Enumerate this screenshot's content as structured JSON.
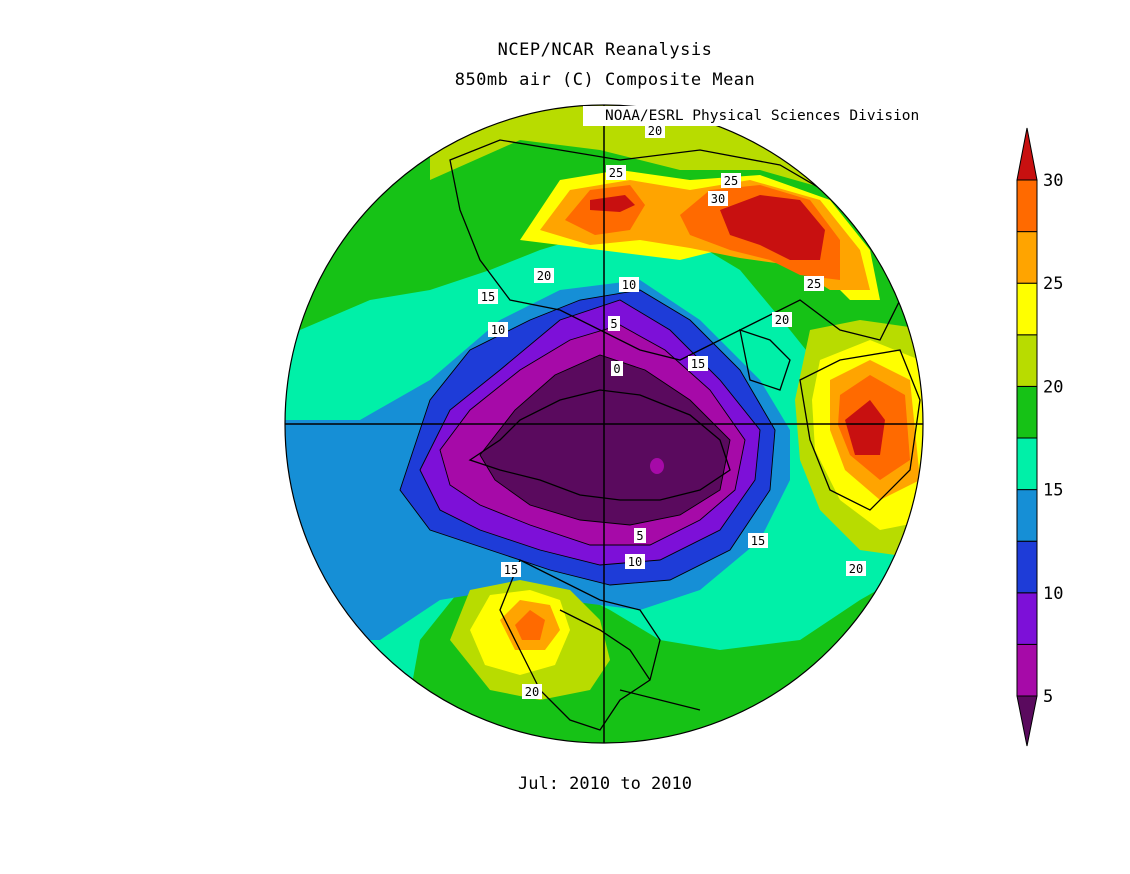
{
  "title_line1": "NCEP/NCAR Reanalysis",
  "title_line2": "850mb air (C) Composite Mean",
  "credit": "NOAA/ESRL Physical Sciences Division",
  "period": "Jul: 2010 to 2010",
  "colorbar": {
    "ticks": [
      "30",
      "25",
      "20",
      "15",
      "10",
      "5"
    ],
    "colors": [
      "#5a0a5e",
      "#a60aa8",
      "#7d10d8",
      "#1e3cd8",
      "#168fd6",
      "#00f0a8",
      "#16c216",
      "#b8dc00",
      "#ffff00",
      "#ffa400",
      "#ff6a00",
      "#c81010"
    ]
  },
  "contour_labels": [
    "20",
    "25",
    "25",
    "30",
    "20",
    "10",
    "15",
    "10",
    "5",
    "25",
    "20",
    "0",
    "15",
    "5",
    "10",
    "15",
    "15",
    "20",
    "20"
  ],
  "map": {
    "projection": "north-polar-stereographic",
    "variable": "850mb air temperature",
    "units": "C"
  }
}
